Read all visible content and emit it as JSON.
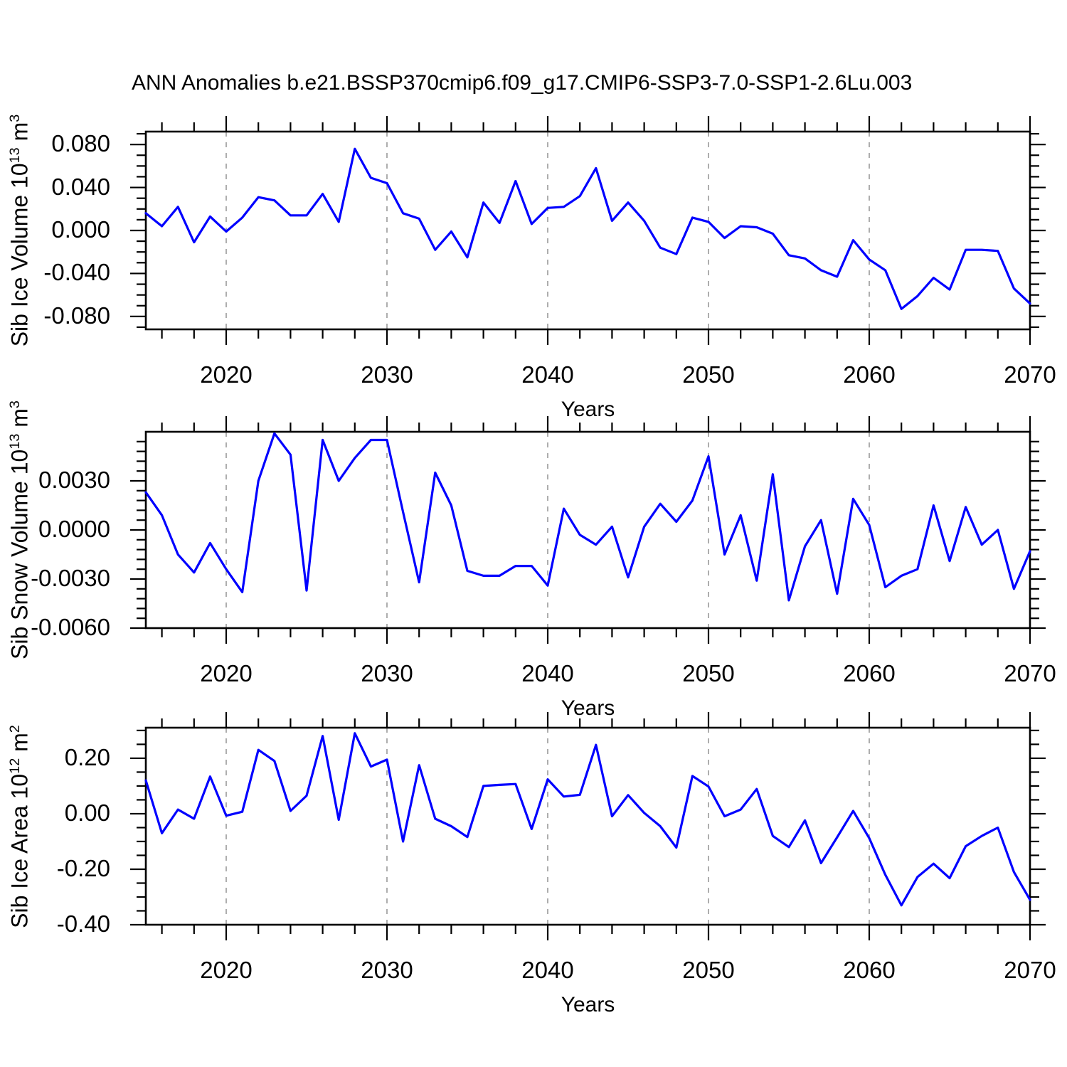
{
  "title": "ANN Anomalies b.e21.BSSP370cmip6.f09_g17.CMIP6-SSP3-7.0-SSP1-2.6Lu.003",
  "colors": {
    "line": "#0000ff",
    "grid": "#999999",
    "axis": "#000000"
  },
  "chart_data": [
    {
      "type": "line",
      "ylabel": "Sib Ice Volume 10^13 m^3",
      "ylabel_segments": [
        {
          "text": "Sib Ice Volume 10"
        },
        {
          "text": "13",
          "sup": true
        },
        {
          "text": " m"
        },
        {
          "text": "3",
          "sup": true
        }
      ],
      "xlabel": "Years",
      "x_start": 2015,
      "x_end": 2070,
      "xlim": [
        2015,
        2070
      ],
      "ylim": [
        -0.092,
        0.092
      ],
      "yticks": [
        0.08,
        0.04,
        0.0,
        -0.04,
        -0.08
      ],
      "ytick_labels": [
        "0.080",
        "0.040",
        "0.000",
        "-0.040",
        "-0.080"
      ],
      "y_minor_step": 0.01,
      "xticks": [
        2020,
        2030,
        2040,
        2050,
        2060,
        2070
      ],
      "xtick_labels": [
        "2020",
        "2030",
        "2040",
        "2050",
        "2060",
        "2070"
      ],
      "x_minor_step": 2,
      "xgrid_at": [
        2020,
        2030,
        2040,
        2050,
        2060
      ],
      "grid_style": "dashed-vertical",
      "legend": "none",
      "values": [
        0.016,
        0.004,
        0.022,
        -0.011,
        0.013,
        -0.001,
        0.012,
        0.031,
        0.028,
        0.014,
        0.014,
        0.034,
        0.008,
        0.076,
        0.049,
        0.044,
        0.016,
        0.011,
        -0.018,
        -0.001,
        -0.025,
        0.026,
        0.007,
        0.046,
        0.006,
        0.021,
        0.022,
        0.032,
        0.058,
        0.009,
        0.026,
        0.009,
        -0.016,
        -0.022,
        0.012,
        0.008,
        -0.007,
        0.004,
        0.003,
        -0.003,
        -0.023,
        -0.026,
        -0.037,
        -0.043,
        -0.009,
        -0.027,
        -0.037,
        -0.073,
        -0.061,
        -0.044,
        -0.055,
        -0.018,
        -0.018,
        -0.019,
        -0.054,
        -0.068
      ]
    },
    {
      "type": "line",
      "ylabel": "Sib Snow Volume 10^13 m^3",
      "ylabel_segments": [
        {
          "text": "Sib Snow Volume 10"
        },
        {
          "text": "13",
          "sup": true
        },
        {
          "text": " m"
        },
        {
          "text": "3",
          "sup": true
        }
      ],
      "xlabel": "Years",
      "x_start": 2015,
      "x_end": 2070,
      "xlim": [
        2015,
        2070
      ],
      "ylim": [
        -0.006,
        0.006
      ],
      "yticks": [
        0.003,
        0.0,
        -0.003,
        -0.006
      ],
      "ytick_labels": [
        "0.0030",
        "0.0000",
        "-0.0030",
        "-0.0060"
      ],
      "y_minor_step": 0.0006,
      "xticks": [
        2020,
        2030,
        2040,
        2050,
        2060,
        2070
      ],
      "xtick_labels": [
        "2020",
        "2030",
        "2040",
        "2050",
        "2060",
        "2070"
      ],
      "x_minor_step": 2,
      "xgrid_at": [
        2020,
        2030,
        2040,
        2050,
        2060
      ],
      "grid_style": "dashed-vertical",
      "legend": "none",
      "values": [
        0.0023,
        0.0009,
        -0.0015,
        -0.0026,
        -0.0008,
        -0.0024,
        -0.0038,
        0.003,
        0.0059,
        0.0046,
        -0.0037,
        0.0055,
        0.003,
        0.0044,
        0.0055,
        0.0055,
        0.0011,
        -0.0032,
        0.0035,
        0.0015,
        -0.0025,
        -0.0028,
        -0.0028,
        -0.0022,
        -0.0022,
        -0.0034,
        0.0013,
        -0.0003,
        -0.0009,
        0.0002,
        -0.0029,
        0.0002,
        0.0016,
        0.0005,
        0.0018,
        0.0045,
        -0.0015,
        0.0009,
        -0.0031,
        0.0034,
        -0.0043,
        -0.001,
        0.0006,
        -0.0039,
        0.0019,
        0.0003,
        -0.0035,
        -0.0028,
        -0.0024,
        0.0015,
        -0.0019,
        0.0014,
        -0.0009,
        0.0,
        -0.0036,
        -0.0013
      ]
    },
    {
      "type": "line",
      "ylabel": "Sib Ice Area 10^12 m^2",
      "ylabel_segments": [
        {
          "text": "Sib Ice Area 10"
        },
        {
          "text": "12",
          "sup": true
        },
        {
          "text": " m"
        },
        {
          "text": "2",
          "sup": true
        }
      ],
      "xlabel": "Years",
      "x_start": 2015,
      "x_end": 2070,
      "xlim": [
        2015,
        2070
      ],
      "ylim": [
        -0.4,
        0.31
      ],
      "yticks": [
        0.2,
        0.0,
        -0.2,
        -0.4
      ],
      "ytick_labels": [
        "0.20",
        "0.00",
        "-0.20",
        "-0.40"
      ],
      "y_minor_step": 0.05,
      "xticks": [
        2020,
        2030,
        2040,
        2050,
        2060,
        2070
      ],
      "xtick_labels": [
        "2020",
        "2030",
        "2040",
        "2050",
        "2060",
        "2070"
      ],
      "x_minor_step": 2,
      "xgrid_at": [
        2020,
        2030,
        2040,
        2050,
        2060
      ],
      "grid_style": "dashed-vertical",
      "legend": "none",
      "values": [
        0.12,
        -0.07,
        0.015,
        -0.018,
        0.134,
        -0.007,
        0.007,
        0.23,
        0.19,
        0.01,
        0.065,
        0.28,
        -0.022,
        0.29,
        0.17,
        0.195,
        -0.1,
        0.175,
        -0.018,
        -0.045,
        -0.084,
        0.1,
        0.104,
        0.107,
        -0.055,
        0.124,
        0.062,
        0.068,
        0.248,
        -0.009,
        0.067,
        0.003,
        -0.045,
        -0.122,
        0.136,
        0.098,
        -0.009,
        0.015,
        0.089,
        -0.08,
        -0.12,
        -0.024,
        -0.178,
        -0.085,
        0.01,
        -0.088,
        -0.22,
        -0.33,
        -0.228,
        -0.18,
        -0.232,
        -0.117,
        -0.08,
        -0.05,
        -0.21,
        -0.31
      ]
    }
  ]
}
